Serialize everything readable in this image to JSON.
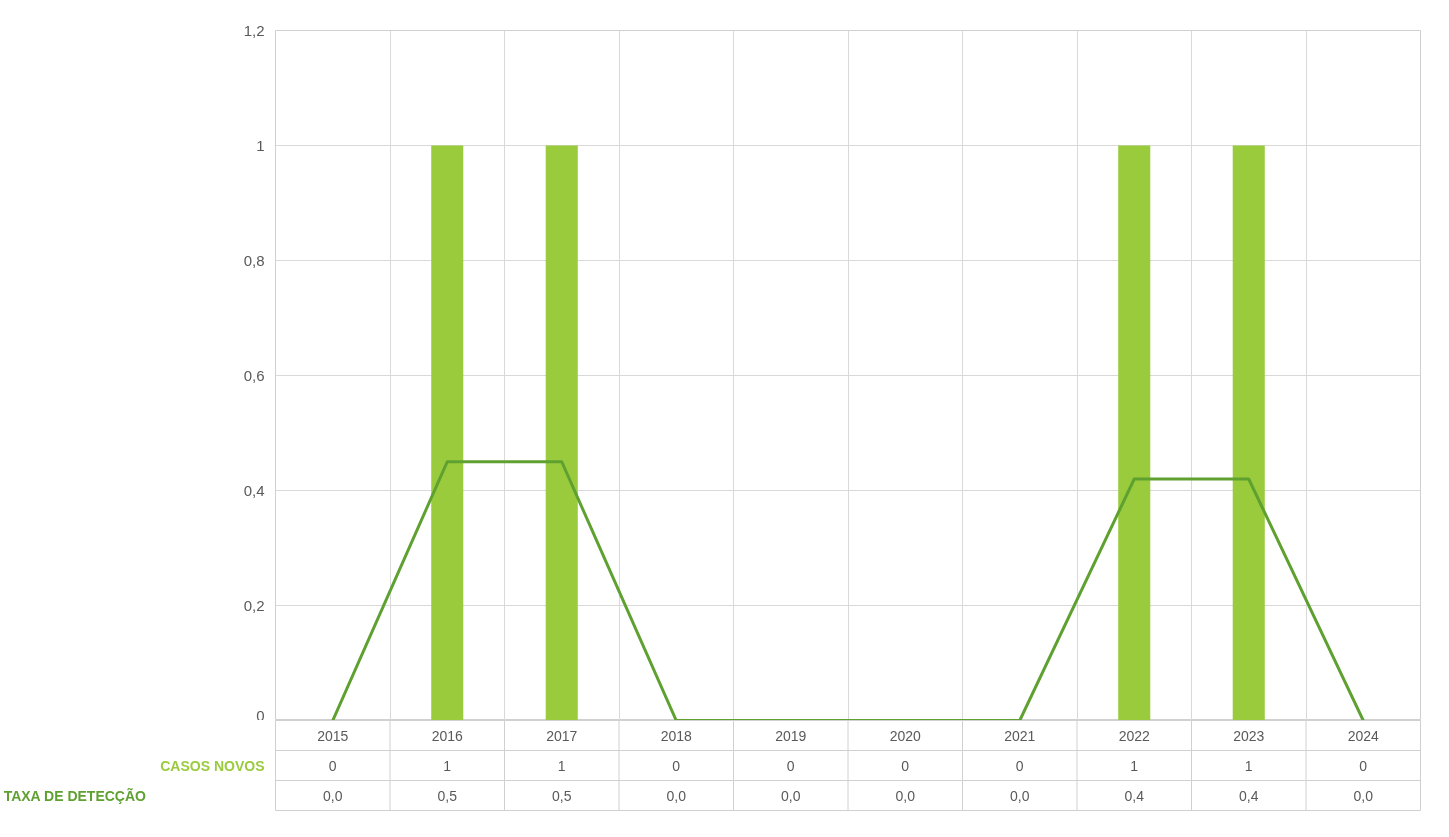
{
  "chart_data": {
    "type": "bar",
    "categories": [
      "2015",
      "2016",
      "2017",
      "2018",
      "2019",
      "2020",
      "2021",
      "2022",
      "2023",
      "2024"
    ],
    "series": [
      {
        "name": "CASOS NOVOS",
        "color": "#9acb3c",
        "values": [
          0,
          1,
          1,
          0,
          0,
          0,
          0,
          1,
          1,
          0
        ],
        "value_labels": [
          "0",
          "1",
          "1",
          "0",
          "0",
          "0",
          "0",
          "1",
          "1",
          "0"
        ]
      },
      {
        "name": "TAXA DE DETECÇÃO",
        "type": "line",
        "color": "#5fa130",
        "values": [
          0,
          0.45,
          0.45,
          0,
          0,
          0,
          0,
          0.42,
          0.42,
          0
        ],
        "value_labels": [
          "0,0",
          "0,5",
          "0,5",
          "0,0",
          "0,0",
          "0,0",
          "0,0",
          "0,4",
          "0,4",
          "0,0"
        ]
      }
    ],
    "ylim": [
      0,
      1.2
    ],
    "yticks": [
      0,
      {
        "value": 0.2,
        "label": "0,2"
      },
      {
        "value": 0.4,
        "label": "0,4"
      },
      {
        "value": 0.6,
        "label": "0,6"
      },
      {
        "value": 0.8,
        "label": "0,8"
      },
      1,
      {
        "value": 1.2,
        "label": "1,2"
      }
    ],
    "grid": true,
    "legend": "bottom"
  }
}
